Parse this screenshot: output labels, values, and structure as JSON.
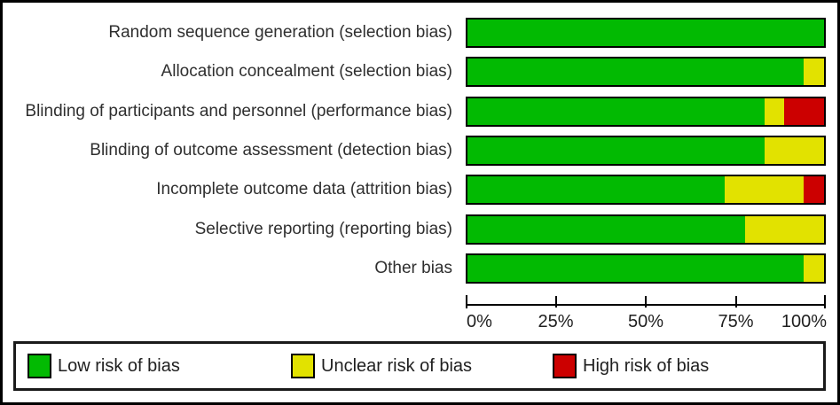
{
  "chart_data": {
    "type": "bar",
    "orientation": "horizontal",
    "stacked": true,
    "title": "",
    "xlabel": "",
    "ylabel": "",
    "grid": false,
    "legend_position": "bottom",
    "xlim": [
      0,
      100
    ],
    "x_tick_labels": [
      "0%",
      "25%",
      "50%",
      "75%",
      "100%"
    ],
    "categories": [
      "Random sequence generation (selection bias)",
      "Allocation concealment (selection bias)",
      "Blinding of participants and personnel (performance bias)",
      "Blinding of outcome assessment (detection bias)",
      "Incomplete outcome data (attrition bias)",
      "Selective reporting (reporting bias)",
      "Other bias"
    ],
    "series": [
      {
        "name": "Low risk of bias",
        "color": "#02ba02",
        "values": [
          100,
          94.4,
          83.3,
          83.3,
          72.2,
          77.8,
          94.4
        ]
      },
      {
        "name": "Unclear risk of bias",
        "color": "#e2e200",
        "values": [
          0,
          5.6,
          5.6,
          16.7,
          22.2,
          22.2,
          5.6
        ]
      },
      {
        "name": "High risk of bias",
        "color": "#cc0000",
        "values": [
          0,
          0,
          11.1,
          0,
          5.6,
          0,
          0
        ]
      }
    ]
  },
  "legend": {
    "items": [
      {
        "label": "Low risk of bias",
        "color": "#02ba02"
      },
      {
        "label": "Unclear risk of bias",
        "color": "#e2e200"
      },
      {
        "label": "High risk of bias",
        "color": "#cc0000"
      }
    ]
  }
}
